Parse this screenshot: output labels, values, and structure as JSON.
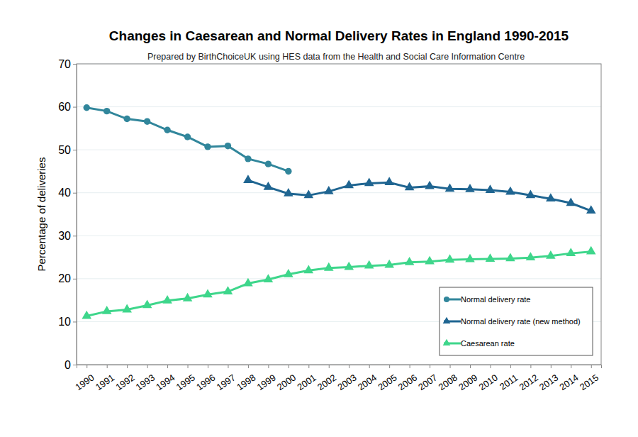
{
  "chart_data": {
    "type": "line",
    "title": "Changes in Caesarean and Normal Delivery Rates in England 1990-2015",
    "subtitle": "Prepared by BirthChoiceUK using HES data from the Health and Social Care Information Centre",
    "y_label": "Percentage of deliveries",
    "categories": [
      "1990",
      "1991",
      "1992",
      "1993",
      "1994",
      "1995",
      "1996",
      "1997",
      "1998",
      "1999",
      "2000",
      "2001",
      "2002",
      "2003",
      "2004",
      "2005",
      "2006",
      "2007",
      "2008",
      "2009",
      "2010",
      "2011",
      "2012",
      "2013",
      "2014",
      "2015"
    ],
    "series": [
      {
        "name": "Normal delivery rate",
        "color": "#31869b",
        "marker": "circle",
        "line_style": "solid",
        "values": [
          59.8,
          59.0,
          57.2,
          56.6,
          54.6,
          53.0,
          50.7,
          50.9,
          47.9,
          46.7,
          45.0,
          null,
          null,
          null,
          null,
          null,
          null,
          null,
          null,
          null,
          null,
          null,
          null,
          null,
          null,
          null
        ]
      },
      {
        "name": "Normal delivery rate (new method)",
        "color": "#1f6591",
        "marker": "triangle",
        "line_style": "solid",
        "values": [
          null,
          null,
          null,
          null,
          null,
          null,
          null,
          null,
          42.9,
          41.3,
          39.8,
          39.4,
          40.3,
          41.7,
          42.2,
          42.4,
          41.2,
          41.5,
          40.9,
          40.8,
          40.6,
          40.2,
          39.4,
          38.6,
          37.6,
          35.8
        ]
      },
      {
        "name": "Caesarean rate",
        "color": "#3ed68b",
        "marker": "triangle",
        "line_style": "solid",
        "values": [
          11.3,
          12.4,
          12.8,
          13.8,
          14.9,
          15.4,
          16.3,
          17.0,
          18.9,
          19.8,
          21.0,
          21.9,
          22.5,
          22.7,
          23.0,
          23.2,
          23.8,
          24.0,
          24.4,
          24.5,
          24.6,
          24.7,
          24.9,
          25.3,
          25.9,
          26.3
        ]
      }
    ],
    "ylim": [
      0,
      70
    ],
    "yticks": [
      0,
      10,
      20,
      30,
      40,
      50,
      60,
      70
    ],
    "grid": true,
    "legend": "lower right"
  }
}
